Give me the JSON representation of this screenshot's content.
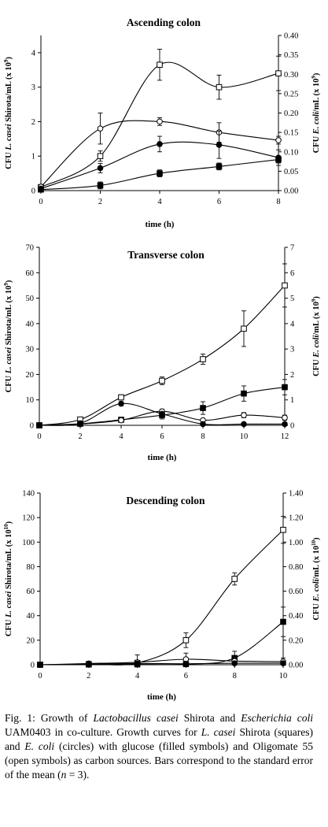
{
  "chart_data": [
    {
      "type": "line",
      "title": "Ascending colon",
      "xlabel": "time (h)",
      "ylabel_left": {
        "prefix": "CFU ",
        "italic": "L. casei",
        "suffix": " Shirota/mL (x 10",
        "exp": "9",
        "close": ")"
      },
      "ylabel_right": {
        "prefix": "CFU ",
        "italic": "E. coli",
        "suffix": "/mL (x 10",
        "exp": "9",
        "close": ")"
      },
      "xlim": [
        0,
        8
      ],
      "xticks": [
        0,
        2,
        4,
        6,
        8
      ],
      "ylim_left": [
        0,
        4.5
      ],
      "yticks_left": [
        "0",
        "1",
        "2",
        "3",
        "4"
      ],
      "ylim_right": [
        0,
        0.4
      ],
      "yticks_right": [
        "0.00",
        "0.05",
        "0.10",
        "0.15",
        "0.20",
        "0.25",
        "0.30",
        "0.35",
        "0.40"
      ],
      "series": [
        {
          "marker": "open-square",
          "axis": "left",
          "x": [
            0,
            2,
            4,
            6,
            8
          ],
          "y": [
            0.1,
            1.0,
            3.65,
            3.0,
            3.4
          ],
          "err": [
            0.05,
            0.15,
            0.45,
            0.35,
            0.5
          ]
        },
        {
          "marker": "filled-square",
          "axis": "left",
          "x": [
            0,
            2,
            4,
            6,
            8
          ],
          "y": [
            0.03,
            0.15,
            0.5,
            0.7,
            0.9
          ],
          "err": [
            0.02,
            0.1,
            0.1,
            0.1,
            0.1
          ]
        },
        {
          "marker": "open-circle",
          "axis": "right",
          "x": [
            0,
            2,
            4,
            6,
            8
          ],
          "y": [
            0.01,
            0.16,
            0.178,
            0.15,
            0.13
          ],
          "err": [
            0.003,
            0.04,
            0.01,
            0.025,
            0.01
          ]
        },
        {
          "marker": "filled-circle",
          "axis": "right",
          "x": [
            0,
            2,
            4,
            6,
            8
          ],
          "y": [
            0.005,
            0.058,
            0.12,
            0.118,
            0.085
          ],
          "err": [
            0.002,
            0.012,
            0.02,
            0.035,
            0.02
          ]
        }
      ]
    },
    {
      "type": "line",
      "title": "Transverse colon",
      "xlabel": "time (h)",
      "ylabel_left": {
        "prefix": "CFU ",
        "italic": "L. casei",
        "suffix": " Shirota/mL (x 10",
        "exp": "9",
        "close": ")"
      },
      "ylabel_right": {
        "prefix": "CFU ",
        "italic": "E. coli",
        "suffix": "/mL (x 10",
        "exp": "9",
        "close": ")"
      },
      "xlim": [
        0,
        12
      ],
      "xticks": [
        0,
        2,
        4,
        6,
        8,
        10,
        12
      ],
      "ylim_left": [
        0,
        70
      ],
      "yticks_left": [
        "0",
        "10",
        "20",
        "30",
        "40",
        "50",
        "60",
        "70"
      ],
      "ylim_right": [
        0,
        7
      ],
      "yticks_right": [
        "0",
        "1",
        "2",
        "3",
        "4",
        "5",
        "6",
        "7"
      ],
      "series": [
        {
          "marker": "open-square",
          "axis": "left",
          "x": [
            0,
            2,
            4,
            6,
            8,
            10,
            12
          ],
          "y": [
            0,
            2.3,
            11,
            17.5,
            26,
            38,
            55
          ],
          "err": [
            0.3,
            0.5,
            1.0,
            1.5,
            2.0,
            7.0,
            8.5
          ]
        },
        {
          "marker": "filled-square",
          "axis": "left",
          "x": [
            0,
            2,
            4,
            6,
            8,
            10,
            12
          ],
          "y": [
            0,
            0.6,
            2.2,
            4.0,
            6.8,
            12.5,
            15
          ],
          "err": [
            0.2,
            0.3,
            0.5,
            1.5,
            2.5,
            3.0,
            3.0
          ]
        },
        {
          "marker": "open-circle",
          "axis": "right",
          "x": [
            0,
            2,
            4,
            6,
            8,
            10,
            12
          ],
          "y": [
            0,
            0.05,
            0.2,
            0.55,
            0.2,
            0.4,
            0.3
          ],
          "err": [
            0.02,
            0.03,
            0.05,
            0.08,
            0.05,
            0.1,
            0.1
          ]
        },
        {
          "marker": "filled-circle",
          "axis": "right",
          "x": [
            0,
            2,
            4,
            6,
            8,
            10,
            12
          ],
          "y": [
            0,
            0.08,
            0.85,
            0.45,
            0.05,
            0.05,
            0.05
          ],
          "err": [
            0.02,
            0.03,
            0.08,
            0.05,
            0.02,
            0.02,
            0.02
          ]
        }
      ]
    },
    {
      "type": "line",
      "title": "Descending colon",
      "xlabel": "time (h)",
      "ylabel_left": {
        "prefix": "CFU ",
        "italic": "L. casei",
        "suffix": " Shirota/mL (x 10",
        "exp": "10",
        "close": ")"
      },
      "ylabel_right": {
        "prefix": "CFU ",
        "italic": "E. coli",
        "suffix": "/mL (x 10",
        "exp": "10",
        "close": ")"
      },
      "xlim": [
        0,
        10
      ],
      "xticks": [
        0,
        2,
        4,
        6,
        8,
        10
      ],
      "ylim_left": [
        0,
        140
      ],
      "yticks_left": [
        "0",
        "20",
        "40",
        "60",
        "80",
        "100",
        "120",
        "140"
      ],
      "ylim_right": [
        0,
        1.4
      ],
      "yticks_right": [
        "0.00",
        "0.20",
        "0.40",
        "0.60",
        "0.80",
        "1.00",
        "1.20",
        "1.40"
      ],
      "series": [
        {
          "marker": "open-square",
          "axis": "left",
          "x": [
            0,
            2,
            4,
            6,
            8,
            10
          ],
          "y": [
            0,
            0.5,
            1.5,
            20,
            70,
            110
          ],
          "err": [
            0.2,
            0.3,
            0.6,
            6.0,
            5.0,
            11.0
          ]
        },
        {
          "marker": "filled-square",
          "axis": "left",
          "x": [
            0,
            2,
            4,
            6,
            8,
            10
          ],
          "y": [
            0,
            0.2,
            0.3,
            0.5,
            5.5,
            35
          ],
          "err": [
            0.2,
            0.2,
            0.3,
            0.5,
            5.5,
            12.0
          ]
        },
        {
          "marker": "open-circle",
          "axis": "right",
          "x": [
            0,
            2,
            4,
            6,
            8,
            10
          ],
          "y": [
            0,
            0.01,
            0.02,
            0.045,
            0.03,
            0.025
          ],
          "err": [
            0.005,
            0.01,
            0.06,
            0.05,
            0.03,
            0.03
          ]
        },
        {
          "marker": "filled-circle",
          "axis": "right",
          "x": [
            0,
            2,
            4,
            6,
            8,
            10
          ],
          "y": [
            0,
            0.005,
            0.01,
            0.008,
            0.012,
            0.012
          ],
          "err": [
            0.003,
            0.005,
            0.005,
            0.005,
            0.005,
            0.005
          ]
        }
      ]
    }
  ],
  "caption": {
    "lead": "Fig. 1: Growth of ",
    "org1": "Lactobacillus casei",
    "t1": " Shirota and ",
    "org2": "Escherichia coli",
    "t2": " UAM0403 in co-culture. Growth curves for ",
    "org3": "L. casei",
    "t3": " Shirota (squares) and ",
    "org4": "E. coli",
    "t4": " (circles) with glucose (filled symbols) and Oligomate 55 (open symbols) as carbon sources. Bars correspond to the standard error of the mean (",
    "nvar": "n",
    "t5": " = 3)."
  }
}
